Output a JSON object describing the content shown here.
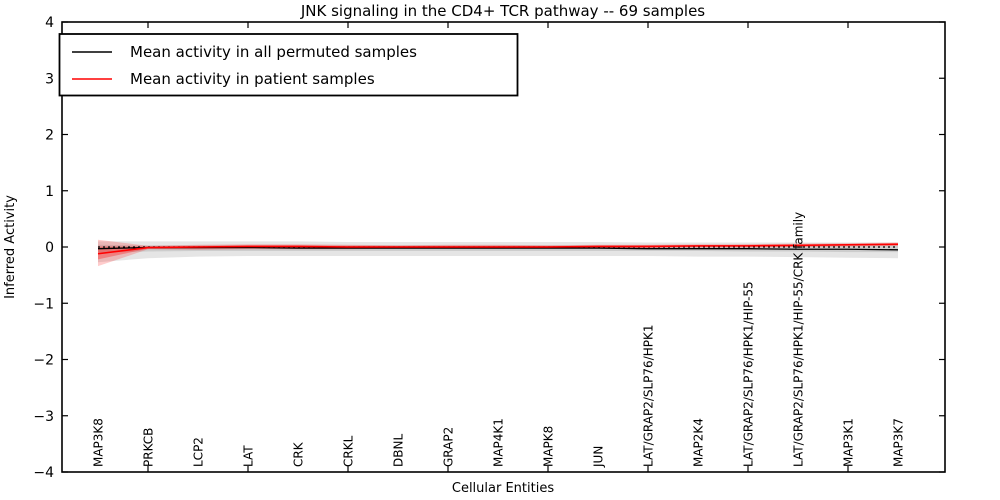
{
  "figure": {
    "title": "JNK signaling in the CD4+ TCR pathway -- 69 samples",
    "xlabel": "Cellular Entities",
    "ylabel": "Inferred Activity"
  },
  "chart_data": {
    "type": "line",
    "title": "JNK signaling in the CD4+ TCR pathway -- 69 samples",
    "xlabel": "Cellular Entities",
    "ylabel": "Inferred Activity",
    "ylim": [
      -4,
      4
    ],
    "yticks": [
      -4,
      -3,
      -2,
      -1,
      0,
      1,
      2,
      3,
      4
    ],
    "grid": false,
    "legend_position": "upper left",
    "categories": [
      "MAP3K8",
      "PRKCB",
      "LCP2",
      "LAT",
      "CRK",
      "CRKL",
      "DBNL",
      "GRAP2",
      "MAP4K1",
      "MAPK8",
      "JUN",
      "LAT/GRAP2/SLP76/HPK1",
      "MAP2K4",
      "LAT/GRAP2/SLP76/HPK1/HIP-55",
      "LAT/GRAP2/SLP76/HPK1/HIP-55/CRK family",
      "MAP3K1",
      "MAP3K7"
    ],
    "series": [
      {
        "name": "Mean activity in all permuted samples",
        "color": "#000000",
        "width": 1.3,
        "values": [
          -0.03,
          -0.01,
          -0.01,
          -0.01,
          -0.02,
          -0.02,
          -0.02,
          -0.02,
          -0.02,
          -0.02,
          -0.02,
          -0.03,
          -0.03,
          -0.03,
          -0.04,
          -0.04,
          -0.05
        ]
      },
      {
        "name": "Mean activity in patient samples",
        "color": "#ff0000",
        "width": 1.6,
        "values": [
          -0.12,
          -0.01,
          0.0,
          0.01,
          0.01,
          0.0,
          0.0,
          0.0,
          0.0,
          0.0,
          0.01,
          0.01,
          0.02,
          0.02,
          0.03,
          0.04,
          0.05
        ]
      }
    ],
    "bands": [
      {
        "name": "permuted-band-outer",
        "color": "rgba(0,0,0,0.10)",
        "upper": [
          0.1,
          0.1,
          0.1,
          0.1,
          0.1,
          0.09,
          0.09,
          0.09,
          0.09,
          0.09,
          0.09,
          0.08,
          0.08,
          0.08,
          0.08,
          0.08,
          0.08
        ],
        "lower": [
          -0.27,
          -0.2,
          -0.17,
          -0.16,
          -0.16,
          -0.16,
          -0.16,
          -0.16,
          -0.16,
          -0.16,
          -0.16,
          -0.16,
          -0.17,
          -0.17,
          -0.18,
          -0.19,
          -0.2
        ]
      },
      {
        "name": "permuted-band-inner",
        "color": "rgba(0,0,0,0.10)",
        "upper": [
          0.04,
          0.03,
          0.03,
          0.03,
          0.03,
          0.03,
          0.03,
          0.03,
          0.03,
          0.03,
          0.03,
          0.03,
          0.03,
          0.03,
          0.03,
          0.03,
          0.03
        ],
        "lower": [
          -0.1,
          -0.08,
          -0.07,
          -0.07,
          -0.07,
          -0.07,
          -0.07,
          -0.07,
          -0.07,
          -0.07,
          -0.07,
          -0.07,
          -0.07,
          -0.08,
          -0.08,
          -0.09,
          -0.09
        ]
      },
      {
        "name": "patient-band-outer",
        "color": "rgba(255,0,0,0.20)",
        "upper": [
          0.13,
          0.02,
          0.04,
          0.05,
          0.05,
          0.04,
          0.03,
          0.04,
          0.04,
          0.03,
          0.04,
          0.04,
          0.05,
          0.05,
          0.06,
          0.07,
          0.08
        ],
        "lower": [
          -0.34,
          -0.04,
          -0.05,
          -0.04,
          -0.04,
          -0.04,
          -0.03,
          -0.03,
          -0.03,
          -0.02,
          -0.02,
          -0.02,
          -0.01,
          -0.01,
          0.0,
          0.01,
          0.02
        ]
      },
      {
        "name": "patient-band-inner",
        "color": "rgba(255,0,0,0.30)",
        "upper": [
          0.01,
          0.01,
          0.02,
          0.03,
          0.03,
          0.02,
          0.02,
          0.02,
          0.02,
          0.02,
          0.02,
          0.03,
          0.03,
          0.04,
          0.04,
          0.05,
          0.06
        ],
        "lower": [
          -0.22,
          -0.03,
          -0.03,
          -0.02,
          -0.02,
          -0.02,
          -0.02,
          -0.02,
          -0.02,
          -0.01,
          -0.01,
          -0.01,
          0.0,
          0.01,
          0.01,
          0.02,
          0.03
        ]
      }
    ],
    "zero_line": {
      "y": 0,
      "style": "dotted",
      "color": "#000000"
    }
  }
}
